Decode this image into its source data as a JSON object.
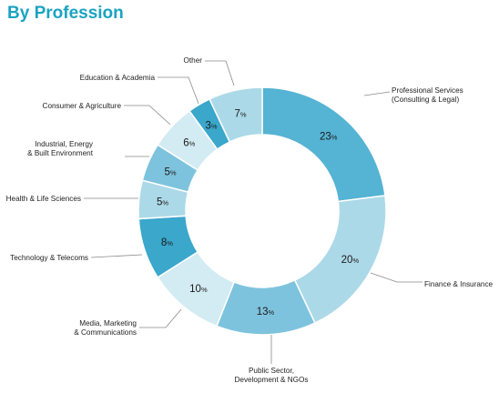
{
  "title": "By Profession",
  "colors": {
    "title": "#1aa3c1",
    "leader": "#8a8a8a"
  },
  "chart_data": {
    "type": "pie",
    "subtype": "donut",
    "title": "By Profession",
    "categories": [
      "Professional Services (Consulting & Legal)",
      "Finance & Insurance",
      "Public Sector, Development & NGOs",
      "Media, Marketing & Communications",
      "Technology & Telecoms",
      "Health & Life Sciences",
      "Industrial, Energy & Built Environment",
      "Consumer & Agriculture",
      "Education & Academia",
      "Other"
    ],
    "values": [
      23,
      20,
      13,
      10,
      8,
      5,
      5,
      6,
      3,
      7
    ],
    "unit": "%",
    "slice_colors": [
      "#55b3d3",
      "#acd9e8",
      "#7ec3dd",
      "#d3ebf3",
      "#3aa7cb",
      "#acd9e8",
      "#7ec3dd",
      "#d3ebf3",
      "#3aa7cb",
      "#acd9e8"
    ],
    "labels": [
      {
        "lines": [
          "Professional Services",
          "(Consulting & Legal)"
        ]
      },
      {
        "lines": [
          "Finance & Insurance"
        ]
      },
      {
        "lines": [
          "Public Sector,",
          "Development & NGOs"
        ]
      },
      {
        "lines": [
          "Media, Marketing",
          "& Communications"
        ]
      },
      {
        "lines": [
          "Technology & Telecoms"
        ]
      },
      {
        "lines": [
          "Health & Life Sciences"
        ]
      },
      {
        "lines": [
          "Industrial, Energy",
          "& Built Environment"
        ]
      },
      {
        "lines": [
          "Consumer & Agriculture"
        ]
      },
      {
        "lines": [
          "Education & Academia"
        ]
      },
      {
        "lines": [
          "Other"
        ]
      }
    ]
  }
}
